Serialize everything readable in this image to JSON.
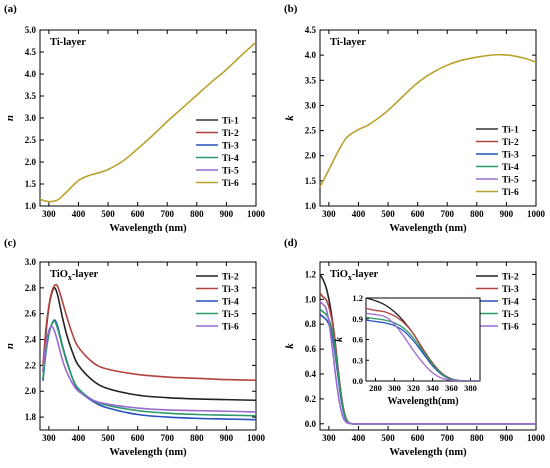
{
  "figure_labels": [
    "(a)",
    "(b)",
    "(c)",
    "(d)"
  ],
  "chart_data": [
    {
      "id": "a",
      "type": "line",
      "panel_title": "Ti-layer",
      "xlabel": "Wavelength (nm)",
      "ylabel": "n",
      "xlim": [
        270,
        1000
      ],
      "ylim": [
        1.0,
        5.0
      ],
      "xticks": [
        300,
        400,
        500,
        600,
        700,
        800,
        900,
        1000
      ],
      "yticks": [
        1.0,
        1.5,
        2.0,
        2.5,
        3.0,
        3.5,
        4.0,
        4.5,
        5.0
      ],
      "ytick_labels": [
        "1.0",
        "1.5",
        "2.0",
        "2.5",
        "3.0",
        "3.5",
        "4.0",
        "4.5",
        "5.0"
      ],
      "legend_position": "center-right",
      "legend": [
        "Ti-1",
        "Ti-2",
        "Ti-3",
        "Ti-4",
        "Ti-5",
        "Ti-6"
      ],
      "series": [
        {
          "name": "Ti-6",
          "color": "#b8a22e",
          "x": [
            270,
            300,
            330,
            360,
            400,
            430,
            460,
            500,
            550,
            600,
            650,
            700,
            750,
            800,
            850,
            900,
            950,
            1000
          ],
          "y": [
            1.15,
            1.1,
            1.14,
            1.32,
            1.58,
            1.68,
            1.74,
            1.83,
            2.02,
            2.3,
            2.6,
            2.92,
            3.22,
            3.52,
            3.82,
            4.1,
            4.42,
            4.72
          ]
        }
      ]
    },
    {
      "id": "b",
      "type": "line",
      "panel_title": "Ti-layer",
      "xlabel": "Wavelength (nm)",
      "ylabel": "k",
      "xlim": [
        270,
        1000
      ],
      "ylim": [
        1.0,
        4.5
      ],
      "xticks": [
        300,
        400,
        500,
        600,
        700,
        800,
        900,
        1000
      ],
      "yticks": [
        1.0,
        1.5,
        2.0,
        2.5,
        3.0,
        3.5,
        4.0,
        4.5
      ],
      "ytick_labels": [
        "1.0",
        "1.5",
        "2.0",
        "2.5",
        "3.0",
        "3.5",
        "4.0",
        "4.5"
      ],
      "legend_position": "bottom-right",
      "legend": [
        "Ti-1",
        "Ti-2",
        "Ti-3",
        "Ti-4",
        "Ti-5",
        "Ti-6"
      ],
      "series": [
        {
          "name": "Ti-6",
          "color": "#b8a22e",
          "x": [
            270,
            300,
            330,
            360,
            400,
            430,
            470,
            500,
            550,
            600,
            650,
            700,
            750,
            800,
            850,
            880,
            920,
            960,
            1000
          ],
          "y": [
            1.38,
            1.72,
            2.07,
            2.36,
            2.52,
            2.6,
            2.76,
            2.9,
            3.18,
            3.45,
            3.65,
            3.8,
            3.9,
            3.96,
            4.0,
            4.01,
            3.99,
            3.94,
            3.86
          ]
        }
      ]
    },
    {
      "id": "c",
      "type": "line",
      "panel_title": "TiOx-layer",
      "xlabel": "Wavelength (nm)",
      "ylabel": "n",
      "xlim": [
        270,
        1000
      ],
      "ylim": [
        1.7,
        3.0
      ],
      "xticks": [
        300,
        400,
        500,
        600,
        700,
        800,
        900,
        1000
      ],
      "yticks": [
        1.8,
        2.0,
        2.2,
        2.4,
        2.6,
        2.8,
        3.0
      ],
      "ytick_labels": [
        "1.8",
        "2.0",
        "2.2",
        "2.4",
        "2.6",
        "2.8",
        "3.0"
      ],
      "legend_position": "top-right",
      "legend": [
        "Ti-2",
        "Ti-3",
        "Ti-4",
        "Ti-5",
        "Ti-6"
      ],
      "series": [
        {
          "name": "Ti-2",
          "color": "#222222",
          "x": [
            280,
            290,
            300,
            310,
            320,
            330,
            345,
            360,
            380,
            400,
            450,
            500,
            600,
            700,
            800,
            900,
            1000
          ],
          "y": [
            2.15,
            2.45,
            2.65,
            2.76,
            2.8,
            2.74,
            2.58,
            2.44,
            2.3,
            2.2,
            2.08,
            2.02,
            1.97,
            1.95,
            1.94,
            1.935,
            1.93
          ]
        },
        {
          "name": "Ti-3",
          "color": "#b0423e",
          "x": [
            280,
            290,
            300,
            310,
            320,
            330,
            345,
            360,
            380,
            400,
            450,
            500,
            600,
            700,
            800,
            900,
            1000
          ],
          "y": [
            2.2,
            2.48,
            2.66,
            2.77,
            2.82,
            2.81,
            2.7,
            2.58,
            2.44,
            2.34,
            2.22,
            2.17,
            2.13,
            2.11,
            2.1,
            2.09,
            2.085
          ]
        },
        {
          "name": "Ti-4",
          "color": "#2650c0",
          "x": [
            280,
            290,
            300,
            310,
            320,
            330,
            345,
            360,
            380,
            400,
            450,
            500,
            600,
            700,
            800,
            900,
            1000
          ],
          "y": [
            2.08,
            2.3,
            2.44,
            2.52,
            2.55,
            2.5,
            2.36,
            2.24,
            2.1,
            2.01,
            1.92,
            1.87,
            1.82,
            1.8,
            1.79,
            1.785,
            1.78
          ]
        },
        {
          "name": "Ti-5",
          "color": "#2a9a6a",
          "x": [
            280,
            290,
            300,
            310,
            320,
            330,
            345,
            360,
            380,
            400,
            450,
            500,
            600,
            700,
            800,
            900,
            1000
          ],
          "y": [
            2.1,
            2.32,
            2.45,
            2.52,
            2.54,
            2.48,
            2.35,
            2.23,
            2.1,
            2.02,
            1.93,
            1.89,
            1.85,
            1.83,
            1.82,
            1.815,
            1.81
          ]
        },
        {
          "name": "Ti-6",
          "color": "#9a6ad2",
          "x": [
            280,
            290,
            300,
            310,
            320,
            330,
            345,
            360,
            380,
            400,
            450,
            500,
            600,
            700,
            800,
            900,
            1000
          ],
          "y": [
            2.16,
            2.36,
            2.47,
            2.5,
            2.46,
            2.38,
            2.25,
            2.15,
            2.06,
            2.0,
            1.93,
            1.9,
            1.87,
            1.855,
            1.85,
            1.845,
            1.84
          ]
        }
      ]
    },
    {
      "id": "d",
      "type": "line",
      "panel_title": "TiOx-layer",
      "xlabel": "Wavelength (nm)",
      "ylabel": "k",
      "xlim": [
        270,
        1000
      ],
      "ylim": [
        -0.05,
        1.3
      ],
      "xticks": [
        300,
        400,
        500,
        600,
        700,
        800,
        900,
        1000
      ],
      "yticks": [
        0.0,
        0.2,
        0.4,
        0.6,
        0.8,
        1.0,
        1.2
      ],
      "ytick_labels": [
        "0.0",
        "0.2",
        "0.4",
        "0.6",
        "0.8",
        "1.0",
        "1.2"
      ],
      "legend_position": "top-right",
      "legend": [
        "Ti-2",
        "Ti-3",
        "Ti-4",
        "Ti-5",
        "Ti-6"
      ],
      "series": [
        {
          "name": "Ti-2",
          "color": "#222222",
          "x": [
            270,
            280,
            290,
            300,
            310,
            320,
            330,
            340,
            350,
            360,
            370,
            380,
            400,
            500,
            700,
            1000
          ],
          "y": [
            1.2,
            1.16,
            1.1,
            1.0,
            0.86,
            0.68,
            0.46,
            0.26,
            0.11,
            0.03,
            0.005,
            0.0,
            0.0,
            0.0,
            0.0,
            0.0
          ]
        },
        {
          "name": "Ti-3",
          "color": "#b0423e",
          "x": [
            270,
            280,
            290,
            300,
            310,
            320,
            330,
            340,
            350,
            360,
            370,
            380,
            400,
            500,
            700,
            1000
          ],
          "y": [
            1.05,
            1.02,
            1.0,
            0.94,
            0.84,
            0.68,
            0.46,
            0.26,
            0.11,
            0.03,
            0.005,
            0.0,
            0.0,
            0.0,
            0.0,
            0.0
          ]
        },
        {
          "name": "Ti-4",
          "color": "#2650c0",
          "x": [
            270,
            280,
            290,
            300,
            310,
            320,
            330,
            340,
            350,
            360,
            370,
            380,
            400,
            500,
            700,
            1000
          ],
          "y": [
            0.88,
            0.86,
            0.84,
            0.8,
            0.72,
            0.58,
            0.4,
            0.22,
            0.09,
            0.02,
            0.003,
            0.0,
            0.0,
            0.0,
            0.0,
            0.0
          ]
        },
        {
          "name": "Ti-5",
          "color": "#2a9a6a",
          "x": [
            270,
            280,
            290,
            300,
            310,
            320,
            330,
            340,
            350,
            360,
            370,
            380,
            400,
            500,
            700,
            1000
          ],
          "y": [
            0.92,
            0.9,
            0.88,
            0.84,
            0.76,
            0.62,
            0.43,
            0.24,
            0.1,
            0.025,
            0.004,
            0.0,
            0.0,
            0.0,
            0.0,
            0.0
          ]
        },
        {
          "name": "Ti-6",
          "color": "#9a6ad2",
          "x": [
            270,
            280,
            290,
            300,
            310,
            320,
            330,
            340,
            350,
            360,
            370,
            380,
            400,
            500,
            700,
            1000
          ],
          "y": [
            0.98,
            0.96,
            0.93,
            0.82,
            0.64,
            0.44,
            0.26,
            0.12,
            0.04,
            0.01,
            0.002,
            0.0,
            0.0,
            0.0,
            0.0,
            0.0
          ]
        }
      ],
      "inset": {
        "xlabel": "Wavelength(nm)",
        "ylabel": "k",
        "xlim": [
          270,
          390
        ],
        "ylim": [
          0.0,
          1.2
        ],
        "xticks": [
          280,
          300,
          320,
          340,
          360,
          380
        ],
        "yticks": [
          0.0,
          0.3,
          0.6,
          0.9,
          1.2
        ],
        "ytick_labels": [
          "0.0",
          "0.3",
          "0.6",
          "0.9",
          "1.2"
        ]
      }
    }
  ]
}
